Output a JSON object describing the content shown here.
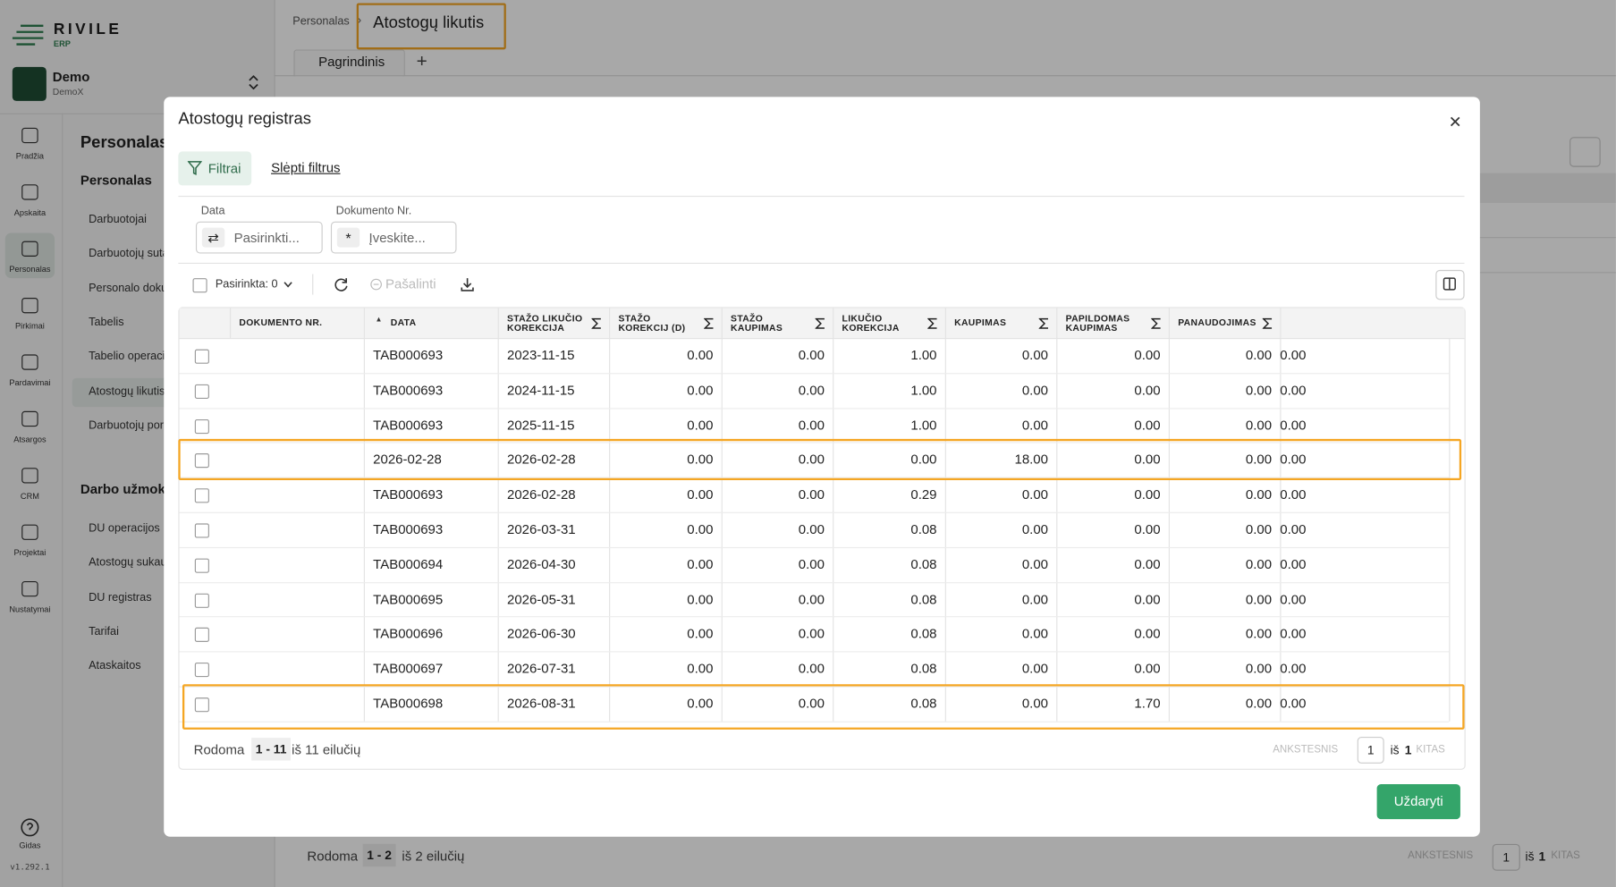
{
  "sidebar": {
    "logo": "RIVILE",
    "logo_sub": "ERP",
    "company": "Demo",
    "company_sub": "DemoX",
    "nav": [
      "Pradžia",
      "Apskaita",
      "Personalas",
      "Pirkimai",
      "Pardavimai",
      "Atsargos",
      "CRM",
      "Projektai",
      "Nustatymai"
    ],
    "help": "Gidas",
    "version": "v1.292.1"
  },
  "submenu": {
    "title": "Personalas",
    "sections": [
      {
        "title": "Personalas",
        "items": [
          "Darbuotojai",
          "Darbuotojų sutartys",
          "Personalo dokumentai",
          "Tabelis",
          "Tabelio operacijos",
          "Atostogų likutis",
          "Darbuotojų poreikiai"
        ]
      },
      {
        "title": "Darbo užmokestis",
        "items": [
          "DU operacijos",
          "Atostogų sukaupimai",
          "DU registras",
          "Tarifai",
          "Ataskaitos"
        ]
      }
    ]
  },
  "header": {
    "breadcrumb": [
      "Personalas",
      "Atostogų likutis"
    ],
    "tab": "Pagrindinis"
  },
  "background_footer": {
    "shown_label": "Rodoma",
    "range": "1 - 2",
    "total": "iš 2 eilučių",
    "prev": "ANKSTESNIS",
    "page": "1",
    "of": "iš",
    "pages": "1",
    "next": "KITAS"
  },
  "modal": {
    "title": "Atostogų registras",
    "filters_button": "Filtrai",
    "hide_filters": "Slėpti filtrus",
    "filters": [
      {
        "label": "Data",
        "placeholder": "Pasirinkti..."
      },
      {
        "label": "Dokumento Nr.",
        "placeholder": "Įveskite..."
      }
    ],
    "toolbar": {
      "selected": "Pasirinkta: 0",
      "remove": "Pašalinti"
    },
    "table": {
      "columns": [
        "DOKUMENTO NR.",
        "DATA",
        "STAŽO LIKUČIO KOREKCIJA",
        "STAŽO KOREKCIJ (D)",
        "STAŽO KAUPIMAS",
        "LIKUČIO KOREKCIJA",
        "KAUPIMAS",
        "PAPILDOMAS KAUPIMAS",
        "PANAUDOJIMAS"
      ],
      "rows": [
        [
          "TAB000693",
          "2023-11-15",
          "0.00",
          "0.00",
          "1.00",
          "0.00",
          "0.00",
          "0.00",
          "0.00"
        ],
        [
          "TAB000693",
          "2024-11-15",
          "0.00",
          "0.00",
          "1.00",
          "0.00",
          "0.00",
          "0.00",
          "0.00"
        ],
        [
          "TAB000693",
          "2025-11-15",
          "0.00",
          "0.00",
          "1.00",
          "0.00",
          "0.00",
          "0.00",
          "0.00"
        ],
        [
          "2026-02-28",
          "2026-02-28",
          "0.00",
          "0.00",
          "0.00",
          "18.00",
          "0.00",
          "0.00",
          "0.00"
        ],
        [
          "TAB000693",
          "2026-02-28",
          "0.00",
          "0.00",
          "0.29",
          "0.00",
          "0.00",
          "0.00",
          "0.00"
        ],
        [
          "TAB000693",
          "2026-03-31",
          "0.00",
          "0.00",
          "0.08",
          "0.00",
          "0.00",
          "0.00",
          "0.00"
        ],
        [
          "TAB000694",
          "2026-04-30",
          "0.00",
          "0.00",
          "0.08",
          "0.00",
          "0.00",
          "0.00",
          "0.00"
        ],
        [
          "TAB000695",
          "2026-05-31",
          "0.00",
          "0.00",
          "0.08",
          "0.00",
          "0.00",
          "0.00",
          "0.00"
        ],
        [
          "TAB000696",
          "2026-06-30",
          "0.00",
          "0.00",
          "0.08",
          "0.00",
          "0.00",
          "0.00",
          "0.00"
        ],
        [
          "TAB000697",
          "2026-07-31",
          "0.00",
          "0.00",
          "0.08",
          "0.00",
          "0.00",
          "0.00",
          "0.00"
        ],
        [
          "TAB000698",
          "2026-08-31",
          "0.00",
          "0.00",
          "0.08",
          "0.00",
          "1.70",
          "0.00",
          "0.00"
        ]
      ]
    },
    "footer": {
      "shown_label": "Rodoma",
      "range": "1 - 11",
      "total": "iš 11 eilučių",
      "prev": "ANKSTESNIS",
      "page": "1",
      "of": "iš",
      "pages": "1",
      "next": "KITAS"
    },
    "close_button": "Uždaryti"
  }
}
